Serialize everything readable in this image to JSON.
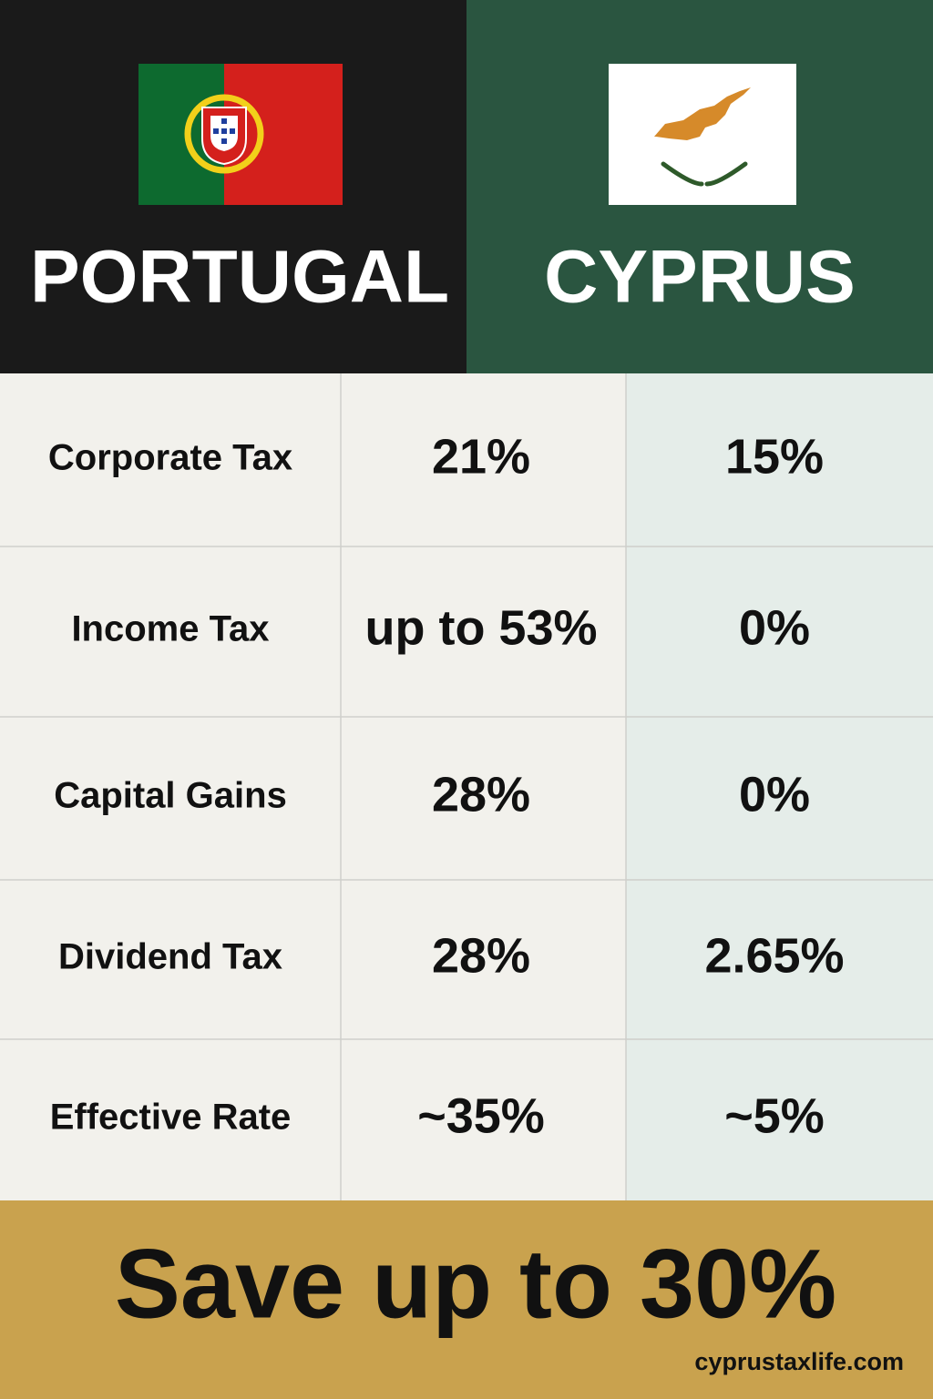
{
  "header": {
    "columns": [
      {
        "title": "PORTUGAL"
      },
      {
        "title": "CYPRUS"
      }
    ]
  },
  "table": {
    "rows": [
      [
        "Corporate Tax",
        "21%",
        "15%"
      ],
      [
        "Income Tax",
        "up to 53%",
        "0%"
      ],
      [
        "Capital Gains",
        "28%",
        "0%"
      ],
      [
        "Dividend Tax",
        "28%",
        "2.65%"
      ],
      [
        "Effective Rate",
        "~35%",
        "~5%"
      ]
    ]
  },
  "footer": {
    "headline": "Save up to 30%",
    "website": "cyprustaxlife.com"
  }
}
